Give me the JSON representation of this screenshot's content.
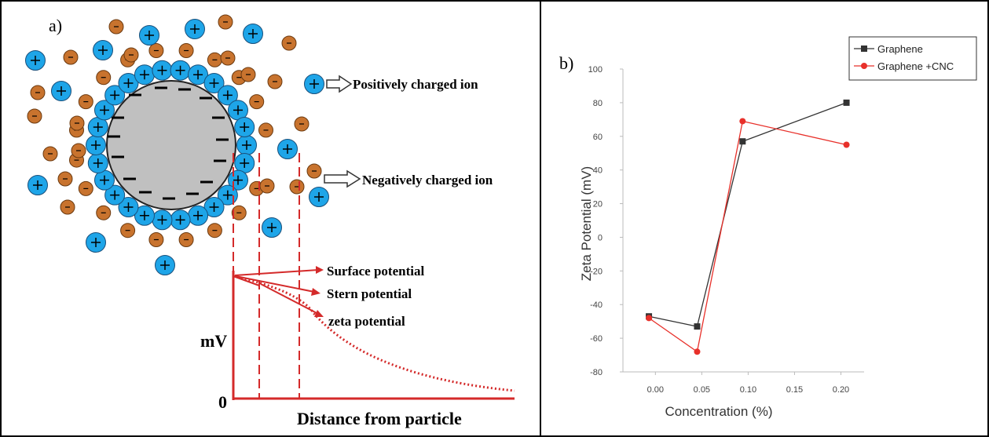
{
  "diagram": {
    "label": "a)",
    "positive_ion": "Positively charged ion",
    "negative_ion": "Negatively charged ion",
    "surface": "Surface potential",
    "stern": "Stern potential",
    "zeta": "zeta potential",
    "y_label": "mV",
    "origin": "0",
    "x_label": "Distance from particle"
  },
  "chart_data": {
    "type": "line",
    "label": "b)",
    "x_label": "Concentration (%)",
    "y_label": "Zeta Potential (mV)",
    "x": [
      -0.007,
      0.045,
      0.094,
      0.206
    ],
    "series": [
      {
        "name": "Graphene",
        "color": "#333333",
        "marker": "square",
        "values": [
          -47,
          -53,
          57,
          80
        ]
      },
      {
        "name": "Graphene +CNC",
        "color": "#e8302a",
        "marker": "diamond",
        "values": [
          -48,
          -68,
          69,
          55
        ]
      }
    ],
    "xlim": [
      -0.035,
      0.225
    ],
    "xticks": [
      {
        "value": 0,
        "label": "0.00"
      },
      {
        "value": 0.05,
        "label": "0.05"
      },
      {
        "value": 0.1,
        "label": "0.10"
      },
      {
        "value": 0.15,
        "label": "0.15"
      },
      {
        "value": 0.2,
        "label": "0.20"
      }
    ],
    "ylim": [
      -80,
      100
    ],
    "yticks": [
      -80,
      -60,
      -40,
      -20,
      0,
      20,
      40,
      60,
      80,
      100
    ],
    "legend": "top-right"
  }
}
